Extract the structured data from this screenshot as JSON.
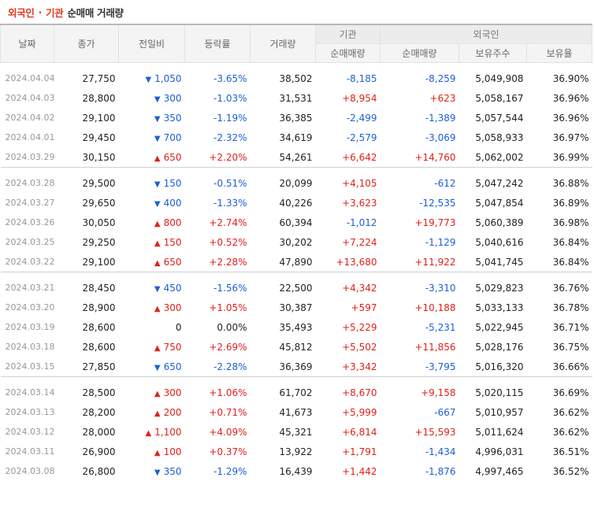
{
  "header": {
    "title_part1": "외국인",
    "title_sep": "·",
    "title_part2": "기관",
    "title_part3": "순매매 거래량"
  },
  "columns": {
    "date": "날짜",
    "close": "종가",
    "change": "전일비",
    "rate": "등락률",
    "volume": "거래량",
    "institution_group": "기관",
    "inst_net": "순매매량",
    "foreign_group": "외국인",
    "foreign_net": "순매매량",
    "holdings": "보유주수",
    "holding_rate": "보유율"
  },
  "colors": {
    "up": "#e0211b",
    "down": "#1d5fd6",
    "accent": "#e0391c"
  },
  "rows": [
    [
      {
        "date": "2024.04.04",
        "close": "27,750",
        "dir": "dn",
        "change": "1,050",
        "rate": "-3.65%",
        "volume": "38,502",
        "inst": "-8,185",
        "foreign": "-8,259",
        "holdings": "5,049,908",
        "hrate": "36.90%"
      },
      {
        "date": "2024.04.03",
        "close": "28,800",
        "dir": "dn",
        "change": "300",
        "rate": "-1.03%",
        "volume": "31,531",
        "inst": "+8,954",
        "foreign": "+623",
        "holdings": "5,058,167",
        "hrate": "36.96%"
      },
      {
        "date": "2024.04.02",
        "close": "29,100",
        "dir": "dn",
        "change": "350",
        "rate": "-1.19%",
        "volume": "36,385",
        "inst": "-2,499",
        "foreign": "-1,389",
        "holdings": "5,057,544",
        "hrate": "36.96%"
      },
      {
        "date": "2024.04.01",
        "close": "29,450",
        "dir": "dn",
        "change": "700",
        "rate": "-2.32%",
        "volume": "34,619",
        "inst": "-2,579",
        "foreign": "-3,069",
        "holdings": "5,058,933",
        "hrate": "36.97%"
      },
      {
        "date": "2024.03.29",
        "close": "30,150",
        "dir": "up",
        "change": "650",
        "rate": "+2.20%",
        "volume": "54,261",
        "inst": "+6,642",
        "foreign": "+14,760",
        "holdings": "5,062,002",
        "hrate": "36.99%"
      }
    ],
    [
      {
        "date": "2024.03.28",
        "close": "29,500",
        "dir": "dn",
        "change": "150",
        "rate": "-0.51%",
        "volume": "20,099",
        "inst": "+4,105",
        "foreign": "-612",
        "holdings": "5,047,242",
        "hrate": "36.88%"
      },
      {
        "date": "2024.03.27",
        "close": "29,650",
        "dir": "dn",
        "change": "400",
        "rate": "-1.33%",
        "volume": "40,226",
        "inst": "+3,623",
        "foreign": "-12,535",
        "holdings": "5,047,854",
        "hrate": "36.89%"
      },
      {
        "date": "2024.03.26",
        "close": "30,050",
        "dir": "up",
        "change": "800",
        "rate": "+2.74%",
        "volume": "60,394",
        "inst": "-1,012",
        "foreign": "+19,773",
        "holdings": "5,060,389",
        "hrate": "36.98%"
      },
      {
        "date": "2024.03.25",
        "close": "29,250",
        "dir": "up",
        "change": "150",
        "rate": "+0.52%",
        "volume": "30,202",
        "inst": "+7,224",
        "foreign": "-1,129",
        "holdings": "5,040,616",
        "hrate": "36.84%"
      },
      {
        "date": "2024.03.22",
        "close": "29,100",
        "dir": "up",
        "change": "650",
        "rate": "+2.28%",
        "volume": "47,890",
        "inst": "+13,680",
        "foreign": "+11,922",
        "holdings": "5,041,745",
        "hrate": "36.84%"
      }
    ],
    [
      {
        "date": "2024.03.21",
        "close": "28,450",
        "dir": "dn",
        "change": "450",
        "rate": "-1.56%",
        "volume": "22,500",
        "inst": "+4,342",
        "foreign": "-3,310",
        "holdings": "5,029,823",
        "hrate": "36.76%"
      },
      {
        "date": "2024.03.20",
        "close": "28,900",
        "dir": "up",
        "change": "300",
        "rate": "+1.05%",
        "volume": "30,387",
        "inst": "+597",
        "foreign": "+10,188",
        "holdings": "5,033,133",
        "hrate": "36.78%"
      },
      {
        "date": "2024.03.19",
        "close": "28,600",
        "dir": "none",
        "change": "0",
        "rate": "0.00%",
        "volume": "35,493",
        "inst": "+5,229",
        "foreign": "-5,231",
        "holdings": "5,022,945",
        "hrate": "36.71%"
      },
      {
        "date": "2024.03.18",
        "close": "28,600",
        "dir": "up",
        "change": "750",
        "rate": "+2.69%",
        "volume": "45,812",
        "inst": "+5,502",
        "foreign": "+11,856",
        "holdings": "5,028,176",
        "hrate": "36.75%"
      },
      {
        "date": "2024.03.15",
        "close": "27,850",
        "dir": "dn",
        "change": "650",
        "rate": "-2.28%",
        "volume": "36,369",
        "inst": "+3,342",
        "foreign": "-3,795",
        "holdings": "5,016,320",
        "hrate": "36.66%"
      }
    ],
    [
      {
        "date": "2024.03.14",
        "close": "28,500",
        "dir": "up",
        "change": "300",
        "rate": "+1.06%",
        "volume": "61,702",
        "inst": "+8,670",
        "foreign": "+9,158",
        "holdings": "5,020,115",
        "hrate": "36.69%"
      },
      {
        "date": "2024.03.13",
        "close": "28,200",
        "dir": "up",
        "change": "200",
        "rate": "+0.71%",
        "volume": "41,673",
        "inst": "+5,999",
        "foreign": "-667",
        "holdings": "5,010,957",
        "hrate": "36.62%"
      },
      {
        "date": "2024.03.12",
        "close": "28,000",
        "dir": "up",
        "change": "1,100",
        "rate": "+4.09%",
        "volume": "45,321",
        "inst": "+6,814",
        "foreign": "+15,593",
        "holdings": "5,011,624",
        "hrate": "36.62%"
      },
      {
        "date": "2024.03.11",
        "close": "26,900",
        "dir": "up",
        "change": "100",
        "rate": "+0.37%",
        "volume": "13,922",
        "inst": "+1,791",
        "foreign": "-1,434",
        "holdings": "4,996,031",
        "hrate": "36.51%"
      },
      {
        "date": "2024.03.08",
        "close": "26,800",
        "dir": "dn",
        "change": "350",
        "rate": "-1.29%",
        "volume": "16,439",
        "inst": "+1,442",
        "foreign": "-1,876",
        "holdings": "4,997,465",
        "hrate": "36.52%"
      }
    ]
  ]
}
